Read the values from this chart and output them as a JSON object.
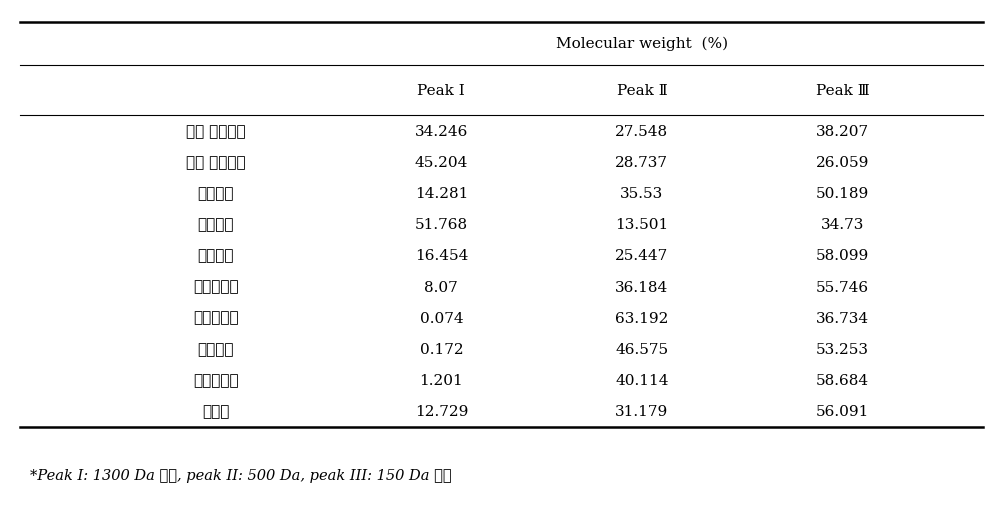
{
  "title_row": "Molecular weight  (%)",
  "col_headers": [
    "Peak Ⅰ",
    "Peak Ⅱ",
    "Peak Ⅲ"
  ],
  "rows": [
    {
      "label": "국내 저염간장",
      "values": [
        "34.246",
        "27.548",
        "38.207"
      ]
    },
    {
      "label": "일본 저염간장",
      "values": [
        "45.204",
        "28.737",
        "26.059"
      ]
    },
    {
      "label": "양조간장",
      "values": [
        "14.281",
        "35.53",
        "50.189"
      ]
    },
    {
      "label": "전통간장",
      "values": [
        "51.768",
        "13.501",
        "34.73"
      ]
    },
    {
      "label": "전통청장",
      "values": [
        "16.454",
        "25.447",
        "58.099"
      ]
    },
    {
      "label": "제주어간장",
      "values": [
        "8.07",
        "36.184",
        "55.746"
      ]
    },
    {
      "label": "멸치어간장",
      "values": [
        "0.074",
        "63.192",
        "36.734"
      ]
    },
    {
      "label": "멸치액젠",
      "values": [
        "0.172",
        "46.575",
        "53.253"
      ]
    },
    {
      "label": "까나리액젠",
      "values": [
        "1.201",
        "40.114",
        "58.684"
      ]
    },
    {
      "label": "새우젠",
      "values": [
        "12.729",
        "31.179",
        "56.091"
      ]
    }
  ],
  "footnote": "*Peak I: 1300 Da 이상, peak II: 500 Da, peak III: 150 Da 이하",
  "bg_color": "#ffffff",
  "text_color": "#000000",
  "font_size": 11,
  "header_font_size": 11,
  "footnote_font_size": 10.5
}
